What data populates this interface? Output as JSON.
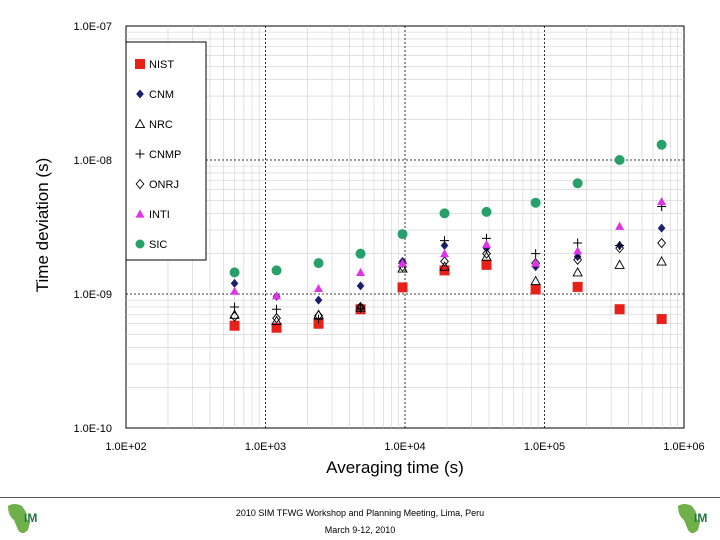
{
  "chart_data": {
    "type": "scatter",
    "xlabel": "Averaging time (s)",
    "ylabel": "Time deviation (s)",
    "x_scale": "log",
    "y_scale": "log",
    "xlim": [
      100,
      1000000
    ],
    "ylim": [
      1e-10,
      1e-07
    ],
    "x_ticks": [
      "1.0E+02",
      "1.0E+03",
      "1.0E+04",
      "1.0E+05",
      "1.0E+06"
    ],
    "y_ticks": [
      "1.0E-07",
      "1.0E-08",
      "1.0E-09",
      "1.0E-10"
    ],
    "grid": true,
    "legend_position": "top-left",
    "series": [
      {
        "name": "NIST",
        "marker": "square",
        "color": "#e8201a",
        "x": [
          600,
          1200,
          2400,
          4800,
          9600,
          19200,
          38400,
          86400,
          172800,
          345600,
          691200
        ],
        "y": [
          5.8e-10,
          5.6e-10,
          6e-10,
          7.7e-10,
          1.12e-09,
          1.5e-09,
          1.65e-09,
          1.08e-09,
          1.13e-09,
          7.7e-10,
          6.5e-10
        ]
      },
      {
        "name": "CNM",
        "marker": "diamond",
        "color": "#1b1f6e",
        "x": [
          600,
          1200,
          2400,
          4800,
          9600,
          19200,
          38400,
          86400,
          172800,
          345600,
          691200
        ],
        "y": [
          1.2e-09,
          9.6e-10,
          9e-10,
          1.15e-09,
          1.75e-09,
          2.3e-09,
          2.2e-09,
          1.6e-09,
          1.9e-09,
          2.3e-09,
          3.1e-09
        ]
      },
      {
        "name": "NRC",
        "marker": "triangle-open",
        "color": "#000000",
        "x": [
          600,
          1200,
          2400,
          4800,
          9600,
          19200,
          38400,
          86400,
          172800,
          345600,
          691200
        ],
        "y": [
          7e-10,
          6.3e-10,
          7e-10,
          7.9e-10,
          1.55e-09,
          1.6e-09,
          1.9e-09,
          1.25e-09,
          1.45e-09,
          1.65e-09,
          1.75e-09
        ]
      },
      {
        "name": "CNMP",
        "marker": "plus",
        "color": "#000000",
        "x": [
          600,
          1200,
          2400,
          4800,
          9600,
          19200,
          38400,
          86400,
          172800,
          345600,
          691200
        ],
        "y": [
          8e-10,
          7.7e-10,
          6.5e-10,
          7.8e-10,
          1.7e-09,
          2.5e-09,
          2.6e-09,
          2e-09,
          2.4e-09,
          2.3e-09,
          4.5e-09
        ]
      },
      {
        "name": "ONRJ",
        "marker": "diamond-open",
        "color": "#000000",
        "x": [
          600,
          1200,
          2400,
          4800,
          9600,
          19200,
          38400,
          86400,
          172800,
          345600,
          691200
        ],
        "y": [
          6.8e-10,
          6.6e-10,
          6.9e-10,
          8e-10,
          1.6e-09,
          1.75e-09,
          2e-09,
          1.7e-09,
          1.8e-09,
          2.2e-09,
          2.4e-09
        ]
      },
      {
        "name": "INTI",
        "marker": "triangle",
        "color": "#e032e6",
        "x": [
          600,
          1200,
          2400,
          4800,
          9600,
          19200,
          38400,
          86400,
          172800,
          345600,
          691200
        ],
        "y": [
          1.05e-09,
          9.7e-10,
          1.1e-09,
          1.45e-09,
          1.7e-09,
          2e-09,
          2.35e-09,
          1.7e-09,
          2.1e-09,
          3.2e-09,
          4.9e-09
        ]
      },
      {
        "name": "SIC",
        "marker": "circle",
        "color": "#27a06a",
        "x": [
          600,
          1200,
          2400,
          4800,
          9600,
          19200,
          38400,
          86400,
          172800,
          345600,
          691200
        ],
        "y": [
          1.45e-09,
          1.5e-09,
          1.7e-09,
          2e-09,
          2.8e-09,
          4e-09,
          4.1e-09,
          4.8e-09,
          6.7e-09,
          1e-08,
          1.3e-08
        ]
      }
    ]
  },
  "footer": {
    "title": "2010 SIM TFWG Workshop and Planning Meeting, Lima, Peru",
    "date": "March 9-12, 2010"
  },
  "logos": {
    "left_text": "IM",
    "right_text": "IM",
    "color": "#1f7a3a"
  }
}
